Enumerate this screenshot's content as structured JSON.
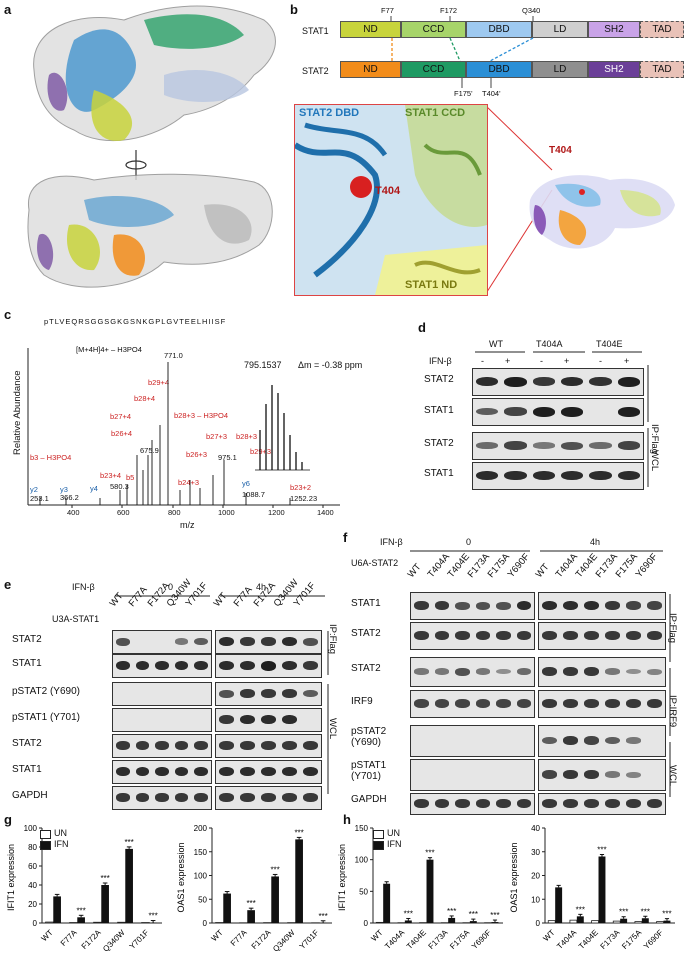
{
  "panels": {
    "a": "a",
    "b": "b",
    "c": "c",
    "d": "d",
    "e": "e",
    "f": "f",
    "g": "g",
    "h": "h"
  },
  "panel_b": {
    "stat1_label": "STAT1",
    "stat2_label": "STAT2",
    "stat1_domains": [
      "ND",
      "CCD",
      "DBD",
      "LD",
      "SH2",
      "TAD"
    ],
    "stat2_domains": [
      "ND",
      "CCD",
      "DBD",
      "LD",
      "SH2",
      "TAD"
    ],
    "top_sites": [
      "F77",
      "F172",
      "Q340"
    ],
    "bottom_sites": [
      "F175'",
      "T404'"
    ],
    "zoom_labels": {
      "dbd": "STAT2 DBD",
      "ccd": "STAT1 CCD",
      "nd": "STAT1 ND",
      "site": "T404",
      "site2": "T404"
    },
    "colors": {
      "ND1": "#c8d43c",
      "CCD1": "#a7d46a",
      "DBD1": "#9ec9f0",
      "LD1": "#cfcfcf",
      "SH21": "#c9a3e8",
      "TAD1": "#e9c2b8",
      "ND2": "#f28c1a",
      "CCD2": "#1e9a63",
      "DBD2": "#2b8fd6",
      "LD2": "#8f8f8f",
      "SH22": "#6b3f98",
      "TAD2": "#e9c2b8"
    }
  },
  "panel_c": {
    "peptide": "pTLVEQRSGGSGKGSNKGPLGVTEELHIISF",
    "b_ions_top": [
      "b2",
      "b5",
      "b23",
      "b25",
      "b26",
      "b27",
      "b28",
      "b29"
    ],
    "y_ions": [
      "y6",
      "y5",
      "y4",
      "y3",
      "y2"
    ],
    "precursor_label": "[M+4H]4+ – H3PO4",
    "inset_mz": "795.1537",
    "inset_dm": "Δm = -0.38 ppm",
    "ylabel": "Relative Abundance",
    "xlabel": "m/z",
    "xticks": [
      "400",
      "600",
      "800",
      "1000",
      "1200",
      "1400"
    ],
    "peak_labels": [
      "771.0",
      "675.9",
      "975.1",
      "580.3",
      "366.2",
      "253.1",
      "1088.7",
      "1252.23"
    ],
    "ion_labels": [
      "b29+4",
      "b28+4",
      "b28+3 – H3PO4",
      "b27+4",
      "b26+4",
      "b27+3",
      "b28+3",
      "b29+3",
      "b3 – H3PO4",
      "b23+4",
      "b5",
      "b24+3",
      "b26+3",
      "b23+2",
      "y4",
      "y6",
      "y2",
      "y3"
    ]
  },
  "panel_d": {
    "groups": [
      "WT",
      "T404A",
      "T404E"
    ],
    "treatment": "IFN-β",
    "signs": [
      "-",
      "+",
      "-",
      "+",
      "-",
      "+"
    ],
    "rows": [
      "STAT2",
      "STAT1",
      "STAT2",
      "STAT1"
    ],
    "side_labels": [
      "IP:Flag",
      "WCL"
    ]
  },
  "panel_e": {
    "treatment": "IFN-β",
    "times": [
      "0",
      "4h"
    ],
    "cell": "U3A-STAT1",
    "lanes": [
      "WT",
      "F77A",
      "F172A",
      "Q340W",
      "Y701F"
    ],
    "rows": [
      "STAT2",
      "STAT1",
      "pSTAT2 (Y690)",
      "pSTAT1 (Y701)",
      "STAT2",
      "STAT1",
      "GAPDH"
    ],
    "side_labels": [
      "IP:Flag",
      "WCL"
    ]
  },
  "panel_f": {
    "treatment": "IFN-β",
    "times": [
      "0",
      "4h"
    ],
    "cell": "U6A-STAT2",
    "lanes": [
      "WT",
      "T404A",
      "T404E",
      "F173A",
      "F175A",
      "Y690F"
    ],
    "rows": [
      "STAT1",
      "STAT2",
      "STAT2",
      "IRF9",
      "pSTAT2 (Y690)",
      "pSTAT1 (Y701)",
      "GAPDH"
    ],
    "side_labels": [
      "IP:Flag",
      "IP:IRF9",
      "WCL"
    ]
  },
  "panel_g": {
    "legend": [
      "UN",
      "IFN"
    ],
    "chart_data": [
      {
        "type": "bar",
        "ylabel": "IFIT1 expression",
        "categories": [
          "WT",
          "F77A",
          "F172A",
          "Q340W",
          "Y701F"
        ],
        "series": [
          {
            "name": "UN",
            "values": [
              1,
              0.5,
              0.8,
              0.8,
              0.5
            ]
          },
          {
            "name": "IFN",
            "values": [
              28,
              6,
              40,
              78,
              0.5
            ]
          }
        ],
        "ylim": [
          0,
          100
        ],
        "yticks": [
          "0",
          "20",
          "40",
          "60",
          "80",
          "100"
        ],
        "stars": [
          "",
          "***",
          "***",
          "***",
          "***"
        ]
      },
      {
        "type": "bar",
        "ylabel": "OAS1 expression",
        "categories": [
          "WT",
          "F77A",
          "F172A",
          "Q340W",
          "Y701F"
        ],
        "series": [
          {
            "name": "UN",
            "values": [
              1,
              0.5,
              0.8,
              0.8,
              0.5
            ]
          },
          {
            "name": "IFN",
            "values": [
              62,
              27,
              98,
              176,
              0.5
            ]
          }
        ],
        "ylim": [
          0,
          200
        ],
        "yticks": [
          "0",
          "50",
          "100",
          "150",
          "200"
        ],
        "stars": [
          "",
          "***",
          "***",
          "***",
          "***"
        ]
      }
    ]
  },
  "panel_h": {
    "legend": [
      "UN",
      "IFN"
    ],
    "chart_data": [
      {
        "type": "bar",
        "ylabel": "IFIT1 expression",
        "categories": [
          "WT",
          "T404A",
          "T404E",
          "F173A",
          "F175A",
          "Y690F"
        ],
        "series": [
          {
            "name": "UN",
            "values": [
              1,
              0.5,
              0.6,
              0.5,
              0.5,
              0.5
            ]
          },
          {
            "name": "IFN",
            "values": [
              62,
              4,
              100,
              8,
              3,
              1.5
            ]
          }
        ],
        "ylim": [
          0,
          150
        ],
        "yticks": [
          "0",
          "50",
          "100",
          "150"
        ],
        "stars": [
          "",
          "***",
          "***",
          "***",
          "***",
          "***"
        ]
      },
      {
        "type": "bar",
        "ylabel": "OAS1 expression",
        "categories": [
          "WT",
          "T404A",
          "T404E",
          "F173A",
          "F175A",
          "Y690F"
        ],
        "series": [
          {
            "name": "UN",
            "values": [
              1,
              1.2,
              1,
              0.8,
              0.6,
              0.6
            ]
          },
          {
            "name": "IFN",
            "values": [
              15,
              2.8,
              28,
              1.8,
              2,
              1
            ]
          }
        ],
        "ylim": [
          0,
          40
        ],
        "yticks": [
          "0",
          "10",
          "20",
          "30",
          "40"
        ],
        "stars": [
          "",
          "***",
          "***",
          "***",
          "***",
          "***"
        ]
      }
    ]
  }
}
